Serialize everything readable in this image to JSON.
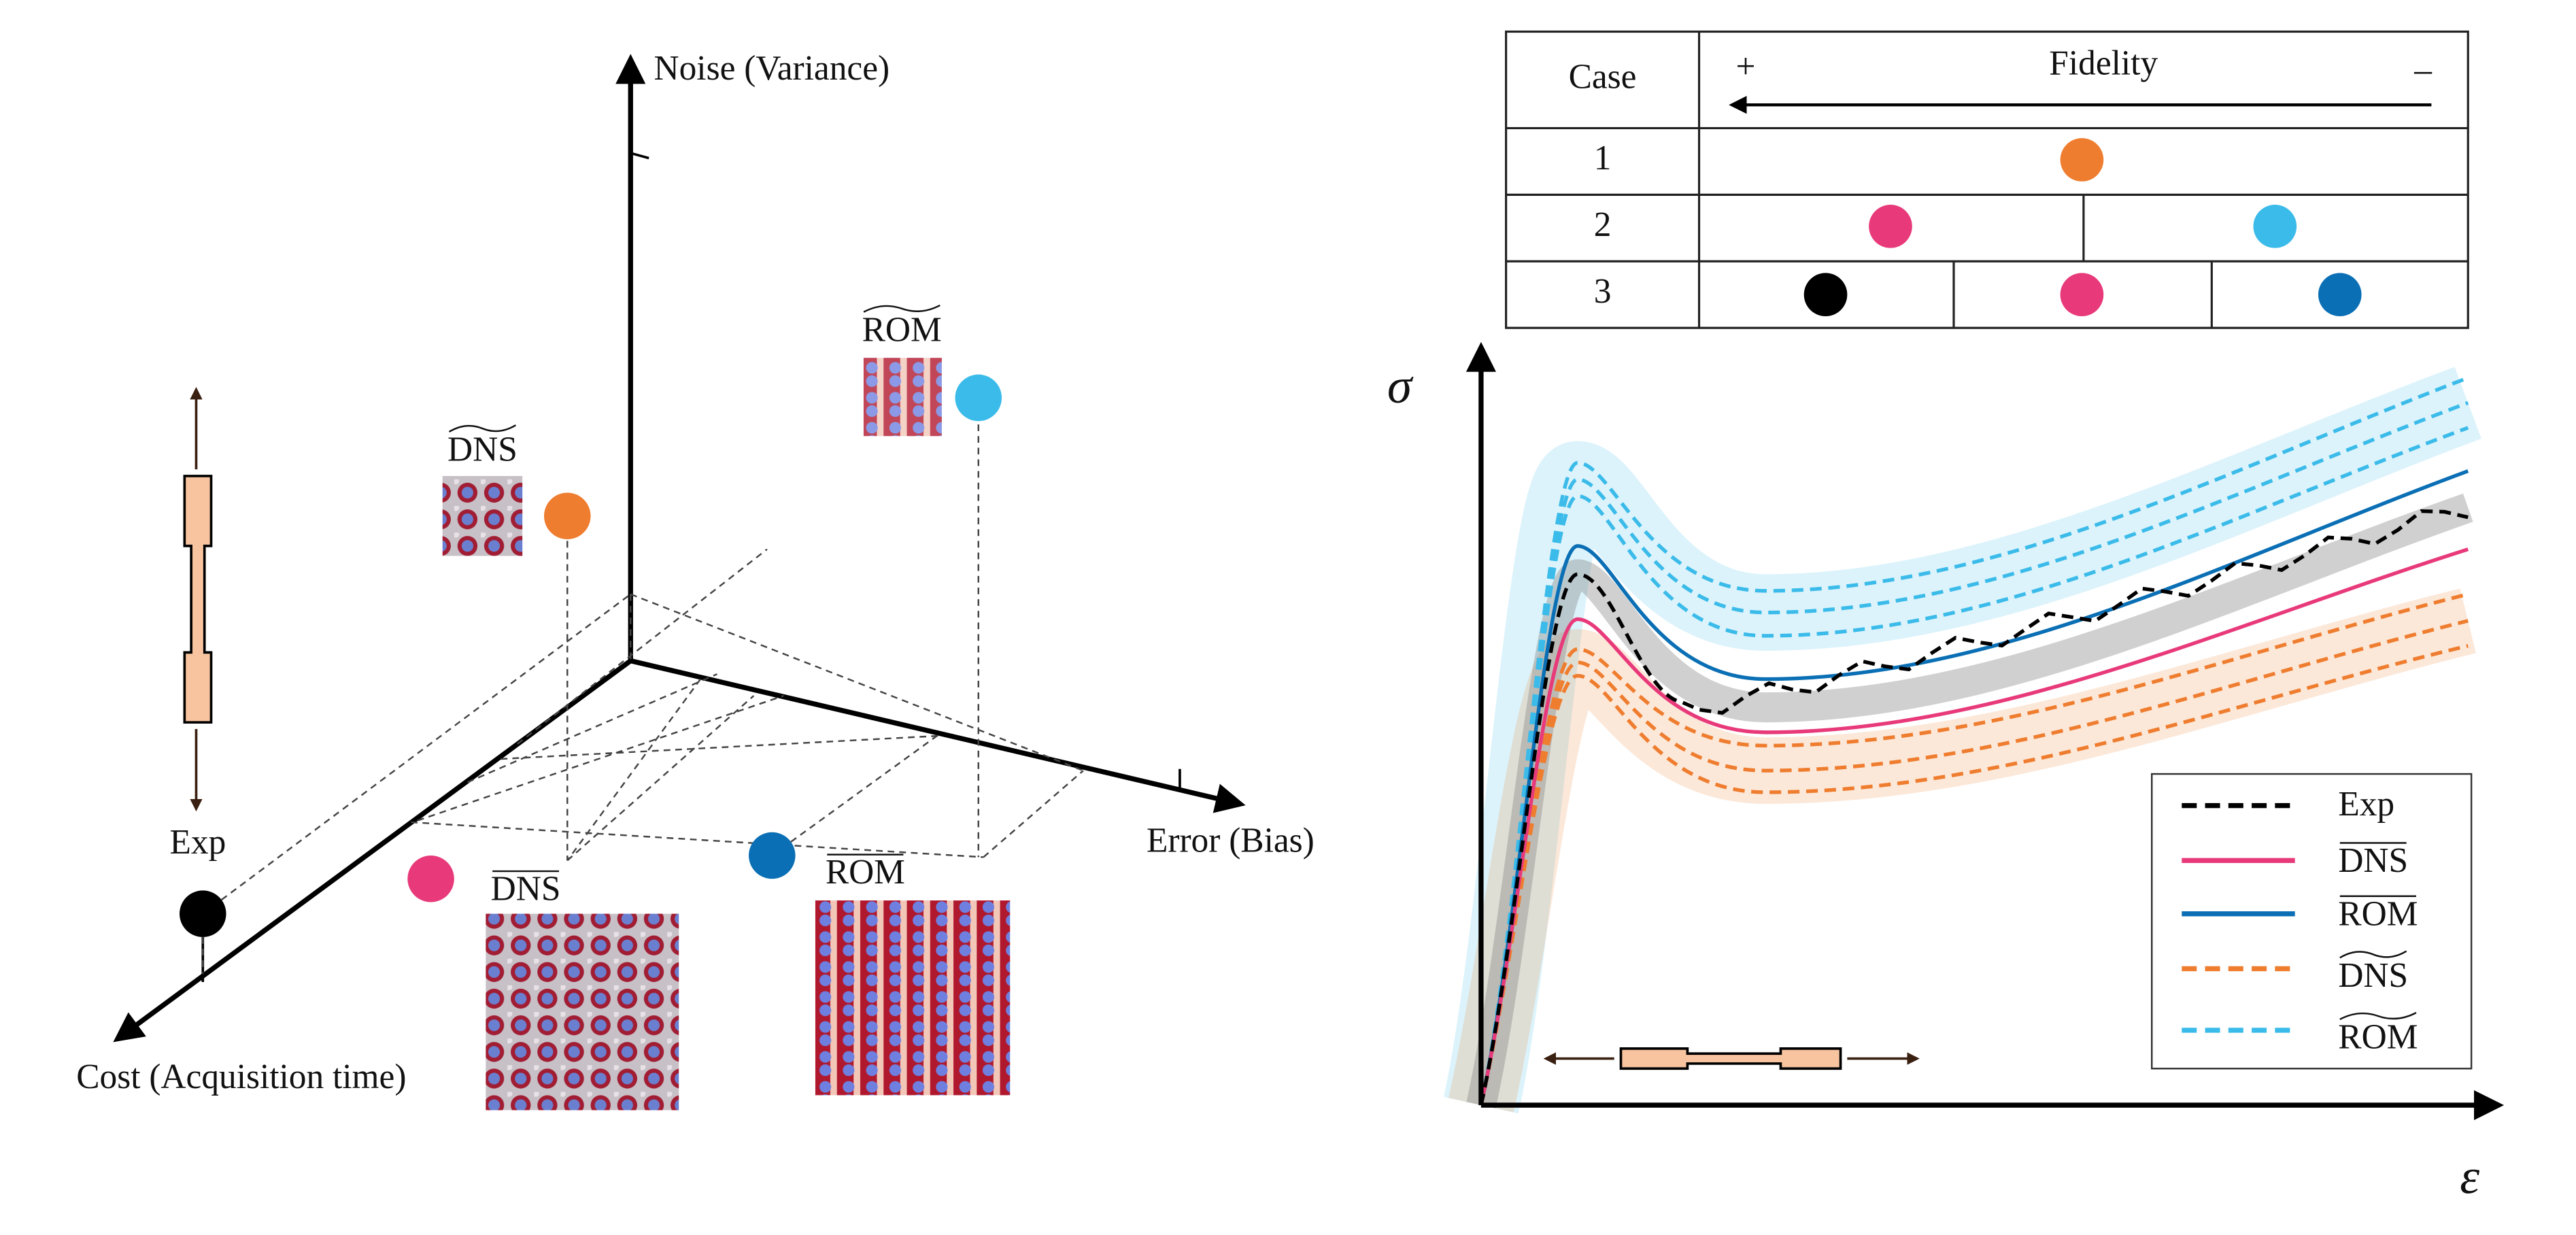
{
  "diagram": {
    "axes": {
      "noise": "Noise (Variance)",
      "error": "Error (Bias)",
      "cost": "Cost (Acquisition time)"
    },
    "points": {
      "exp": "Exp",
      "dns_tilde": "DNS",
      "rom_tilde": "ROM",
      "dns_bar": "DNS",
      "rom_bar": "ROM"
    }
  },
  "table": {
    "header": [
      "Case",
      "Fidelity"
    ],
    "plus": "+",
    "minus": "–",
    "rows": [
      "1",
      "2",
      "3"
    ]
  },
  "chart": {
    "y_label": "σ",
    "x_label": "ε",
    "legend": [
      "Exp",
      "DNS",
      "ROM",
      "DNS",
      "ROM"
    ]
  }
}
